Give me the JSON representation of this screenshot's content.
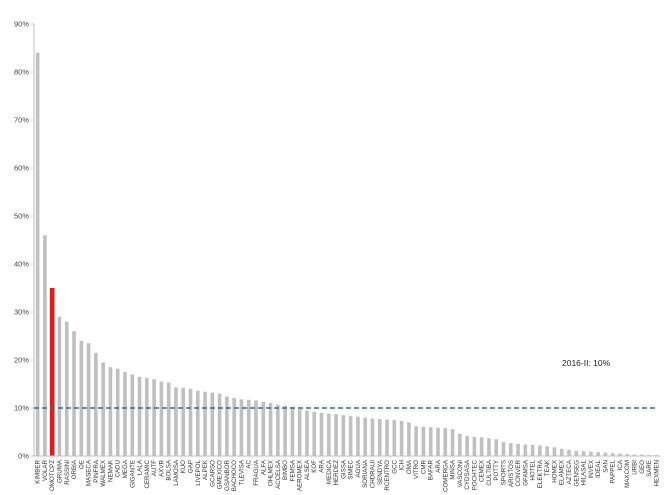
{
  "chart_data": {
    "type": "bar",
    "title": "",
    "xlabel": "",
    "ylabel": "",
    "ylim": [
      0,
      90
    ],
    "yticks": [
      "0%",
      "10%",
      "20%",
      "30%",
      "40%",
      "50%",
      "60%",
      "70%",
      "80%",
      "90%"
    ],
    "grid": false,
    "legend": "none",
    "highlight_category": "OMOTCPZ",
    "colors": {
      "bar": "#c0c0c0",
      "highlight": "#e31a1c",
      "reference_line": "#3b6e7a",
      "axis": "#bfbfbf"
    },
    "reference_line": {
      "value": 10,
      "label": "2016-II: 10%"
    },
    "categories": [
      "KIMBER",
      "VOLAR",
      "OMOTCPZ",
      "GRUMA",
      "RASSINI",
      "ORBIA",
      "OE",
      "MASECA",
      "PINFRA",
      "WALMEX",
      "NEMAK",
      "CADU",
      "MEGA",
      "GIGANTE",
      "LALA",
      "CERAMIC",
      "AUTF",
      "AXVR",
      "BOLSA",
      "LAMOSA",
      "KUO",
      "GAP",
      "LIVEPOL",
      "ALPEK",
      "GCARSO",
      "GMEXICO",
      "GSANBOR",
      "BACHOCO",
      "TLEVISA",
      "AC",
      "FRAGUA",
      "ALFA",
      "OHLMEX",
      "ACCELSA",
      "BIMBO",
      "FEMSA",
      "AEROMEX",
      "ALSEA",
      "KOF",
      "ARA",
      "MEDICA",
      "HERDEZ",
      "GISSA",
      "SIMEC",
      "AGUA",
      "SORIANA",
      "CHDRAUI",
      "SENDYA",
      "RCENTRO",
      "GCC",
      "ICH",
      "OMA",
      "VITRO",
      "CMR",
      "BAFAR",
      "ARA",
      "COMERGA",
      "MINSA",
      "VASCONI",
      "CYDSASA",
      "POCHTEC",
      "CEMEX",
      "CULTIBA",
      "POTTY",
      "SPORTS",
      "ARISTOS",
      "CONVER",
      "GFAMSA",
      "HOTEL",
      "ELEKTRA",
      "TEAK",
      "HOMEX",
      "ELAMEX",
      "AZTECA",
      "GENSEG",
      "HILASAL",
      "INVEX",
      "IDEAL",
      "SAN",
      "PAPPEL",
      "ICA",
      "MAXCOM",
      "URBI",
      "GEO",
      "SARE",
      "HEXMEN"
    ],
    "values": [
      84,
      46,
      35,
      29,
      28,
      26,
      24,
      23.5,
      21.5,
      19.5,
      18.5,
      18.2,
      17.5,
      17,
      16.5,
      16.3,
      16,
      15.5,
      15.3,
      14.3,
      14.2,
      14,
      13.6,
      13.4,
      13.2,
      13,
      12.4,
      12.1,
      11.8,
      11.7,
      11.6,
      11.3,
      11,
      10.7,
      10.5,
      10.2,
      9.8,
      9.5,
      9.2,
      9,
      8.8,
      8.7,
      8.5,
      8.3,
      8.2,
      8,
      7.8,
      7.7,
      7.6,
      7.5,
      7.3,
      7,
      6.2,
      6.1,
      6,
      5.9,
      5.8,
      5.6,
      4.6,
      4.2,
      4,
      3.9,
      3.7,
      3.5,
      2.9,
      2.7,
      2.5,
      2.4,
      2.3,
      2.2,
      2,
      1.8,
      1.5,
      1.3,
      1.1,
      1,
      0.9,
      0.8,
      0.7,
      0.6,
      0.5,
      0.4,
      0.3,
      0.3,
      0.2,
      0.2
    ]
  }
}
